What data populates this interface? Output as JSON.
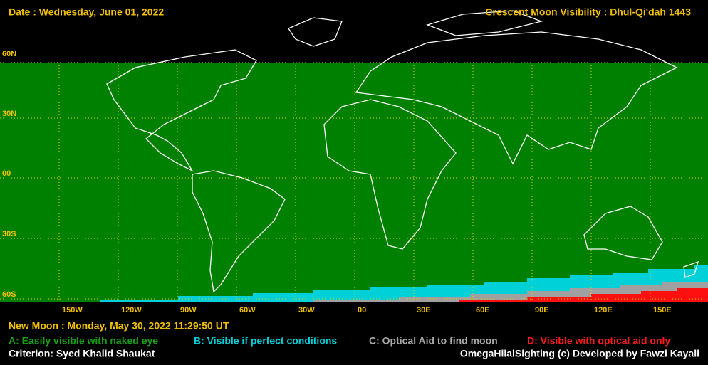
{
  "header": {
    "date": "Date : Wednesday, June 01, 2022",
    "title": "Crescent Moon Visibility : Dhul-Qi'dah  1443"
  },
  "map": {
    "lat_labels": [
      "60N",
      "30N",
      "00",
      "30S",
      "60S"
    ],
    "lon_labels": [
      "150W",
      "120W",
      "90W",
      "60W",
      "30W",
      "00",
      "30E",
      "60E",
      "90E",
      "120E",
      "150E"
    ]
  },
  "footer": {
    "new_moon": "New Moon : Monday, May 30, 2022  11:29:50  UT",
    "legend": [
      {
        "label": "A: Easily visible with naked eye",
        "color": "#16a016"
      },
      {
        "label": "B: Visible if perfect conditions",
        "color": "#00d0d8"
      },
      {
        "label": "C: Optical Aid to find moon",
        "color": "#a8a8a8"
      },
      {
        "label": "D: Visible with optical aid only",
        "color": "#ff1a1a"
      }
    ],
    "criterion": "Criterion: Syed Khalid Shaukat",
    "credit": "OmegaHilalSighting  (c)  Developed by Fawzi Kayali"
  }
}
